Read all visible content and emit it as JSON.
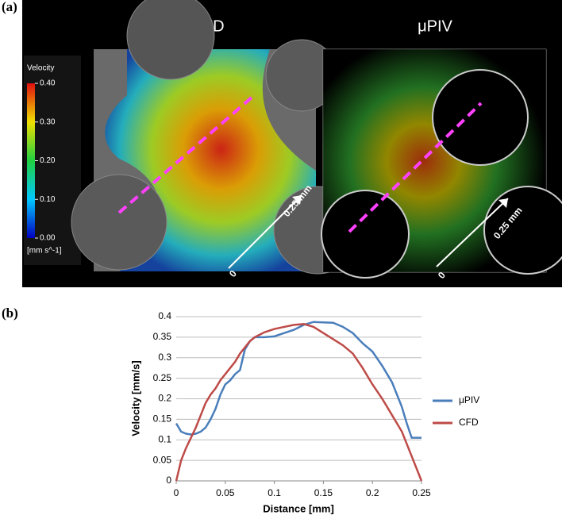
{
  "panel_labels": [
    "(a)",
    "(b)"
  ],
  "panel_a": {
    "titles": [
      "CFD",
      "μPIV"
    ],
    "colorbar": {
      "title": "Velocity",
      "unit": "[mm s^-1]",
      "ticks": [
        {
          "value": 0.4,
          "label": "0.40"
        },
        {
          "value": 0.3,
          "label": "0.30"
        },
        {
          "value": 0.2,
          "label": "0.20"
        },
        {
          "value": 0.1,
          "label": "0.10"
        },
        {
          "value": 0,
          "label": "0.00"
        }
      ],
      "lim": [
        0,
        0.4
      ]
    },
    "annotations": [
      "0.25 mm",
      "0",
      "0.25 mm",
      "0"
    ]
  },
  "chart_data": {
    "type": "line",
    "xlabel": "Distance [mm]",
    "ylabel": "Velocity [mm/s]",
    "x": [
      0,
      0.005,
      0.01,
      0.015,
      0.02,
      0.025,
      0.03,
      0.035,
      0.04,
      0.045,
      0.05,
      0.055,
      0.06,
      0.065,
      0.07,
      0.075,
      0.08,
      0.09,
      0.1,
      0.11,
      0.12,
      0.13,
      0.14,
      0.15,
      0.16,
      0.17,
      0.18,
      0.19,
      0.2,
      0.21,
      0.22,
      0.23,
      0.235,
      0.24,
      0.245,
      0.25
    ],
    "series": [
      {
        "name": "μPIV",
        "color": "#4a7ebb",
        "values": [
          0.14,
          0.12,
          0.115,
          0.113,
          0.115,
          0.12,
          0.13,
          0.15,
          0.175,
          0.21,
          0.235,
          0.245,
          0.26,
          0.27,
          0.32,
          0.34,
          0.35,
          0.35,
          0.352,
          0.36,
          0.368,
          0.38,
          0.387,
          0.386,
          0.385,
          0.375,
          0.36,
          0.335,
          0.315,
          0.28,
          0.24,
          0.18,
          0.14,
          0.105,
          0.105,
          0.105
        ]
      },
      {
        "name": "CFD",
        "color": "#be4b48",
        "values": [
          0,
          0.05,
          0.08,
          0.105,
          0.13,
          0.16,
          0.19,
          0.21,
          0.225,
          0.245,
          0.26,
          0.275,
          0.29,
          0.31,
          0.325,
          0.34,
          0.35,
          0.362,
          0.37,
          0.375,
          0.38,
          0.382,
          0.375,
          0.36,
          0.345,
          0.33,
          0.31,
          0.275,
          0.235,
          0.2,
          0.16,
          0.12,
          0.09,
          0.06,
          0.03,
          0
        ]
      }
    ],
    "xlim": [
      0,
      0.25
    ],
    "xticks": [
      0,
      0.05,
      0.1,
      0.15,
      0.2,
      0.25
    ],
    "ylim": [
      0,
      0.4
    ],
    "yticks": [
      0,
      0.05,
      0.1,
      0.15,
      0.2,
      0.25,
      0.3,
      0.35,
      0.4
    ],
    "grid": true,
    "legend": "right"
  }
}
